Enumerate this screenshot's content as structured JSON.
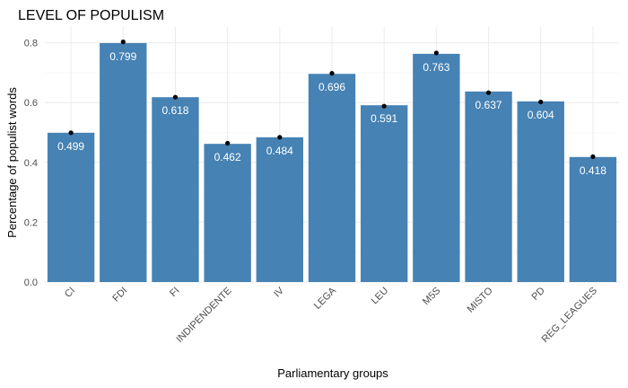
{
  "chart_data": {
    "type": "bar",
    "title": "LEVEL OF POPULISM",
    "xlabel": "Parliamentary groups",
    "ylabel": "Percentage of populist words",
    "categories": [
      "CI",
      "FDI",
      "FI",
      "INDIPENDENTE",
      "IV",
      "LEGA",
      "LEU",
      "M5S",
      "MISTO",
      "PD",
      "REG_LEAGUES"
    ],
    "values": [
      0.499,
      0.799,
      0.618,
      0.462,
      0.484,
      0.696,
      0.591,
      0.763,
      0.637,
      0.604,
      0.418
    ],
    "value_labels": [
      "0.499",
      "0.799",
      "0.618",
      "0.462",
      "0.484",
      "0.696",
      "0.591",
      "0.763",
      "0.637",
      "0.604",
      "0.418"
    ],
    "point_values": [
      0.499,
      0.803,
      0.618,
      0.464,
      0.484,
      0.698,
      0.588,
      0.766,
      0.633,
      0.602,
      0.419
    ],
    "ylim": [
      0,
      0.82
    ],
    "yticks": [
      0.0,
      0.2,
      0.4,
      0.6,
      0.8
    ],
    "ytick_labels": [
      "0.0",
      "0.2",
      "0.4",
      "0.6",
      "0.8"
    ],
    "grid": true,
    "legend": "none",
    "colors": {
      "bar": "#4682b4",
      "point": "#000000",
      "label": "#ffffff"
    }
  }
}
